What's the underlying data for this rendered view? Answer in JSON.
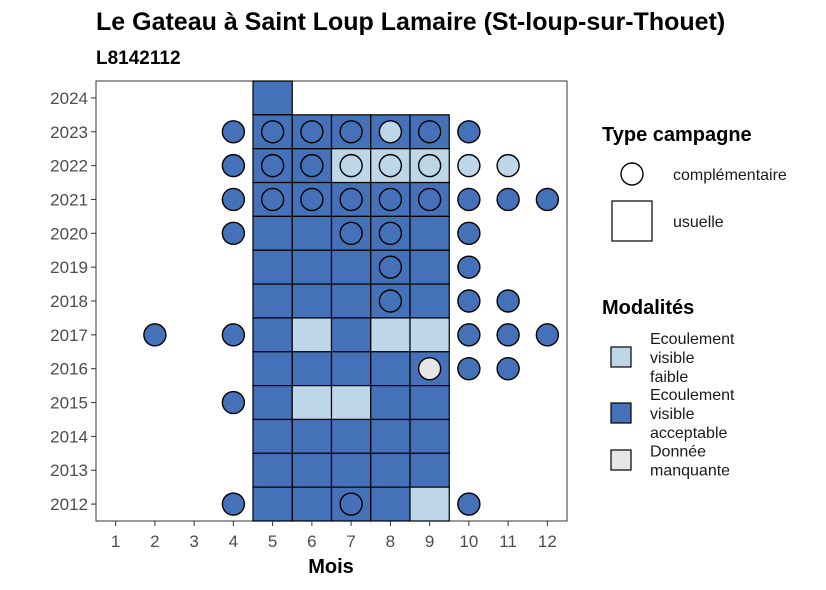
{
  "chart_data": {
    "type": "heatmap",
    "title": "Le Gateau à  Saint Loup Lamaire (St-loup-sur-Thouet)",
    "subtitle": "L8142112",
    "xlabel": "Mois",
    "ylabel": "",
    "x_ticks": [
      "1",
      "2",
      "3",
      "4",
      "5",
      "6",
      "7",
      "8",
      "9",
      "10",
      "11",
      "12"
    ],
    "y_ticks": [
      "2012",
      "2013",
      "2014",
      "2015",
      "2016",
      "2017",
      "2018",
      "2019",
      "2020",
      "2021",
      "2022",
      "2023",
      "2024"
    ],
    "xlim": [
      0.5,
      12.5
    ],
    "ylim": [
      2011.5,
      2024.5
    ],
    "grid": false,
    "legend_campagne": {
      "title": "Type campagne",
      "items": [
        {
          "key": "complementaire",
          "label": "complémentaire",
          "shape": "circle"
        },
        {
          "key": "usuelle",
          "label": "usuelle",
          "shape": "square"
        }
      ]
    },
    "legend_modalites": {
      "title": "Modalités",
      "items": [
        {
          "key": "faible",
          "label": "Ecoulement visible faible",
          "lines": [
            "Ecoulement",
            "visible",
            "faible"
          ],
          "color": "#bed7e8"
        },
        {
          "key": "acceptable",
          "label": "Ecoulement visible acceptable",
          "lines": [
            "Ecoulement",
            "visible",
            "acceptable"
          ],
          "color": "#4471b8"
        },
        {
          "key": "manquante",
          "label": "Donnée manquante",
          "lines": [
            "Donnée",
            "manquante"
          ],
          "color": "#e6e6e6"
        }
      ]
    },
    "squares": [
      {
        "year": 2024,
        "month": 5,
        "m": "acceptable"
      },
      {
        "year": 2023,
        "month": 5,
        "m": "acceptable"
      },
      {
        "year": 2023,
        "month": 6,
        "m": "acceptable"
      },
      {
        "year": 2023,
        "month": 7,
        "m": "acceptable"
      },
      {
        "year": 2023,
        "month": 8,
        "m": "acceptable"
      },
      {
        "year": 2023,
        "month": 9,
        "m": "acceptable"
      },
      {
        "year": 2022,
        "month": 5,
        "m": "acceptable"
      },
      {
        "year": 2022,
        "month": 6,
        "m": "acceptable"
      },
      {
        "year": 2022,
        "month": 7,
        "m": "faible"
      },
      {
        "year": 2022,
        "month": 8,
        "m": "faible"
      },
      {
        "year": 2022,
        "month": 9,
        "m": "faible"
      },
      {
        "year": 2021,
        "month": 5,
        "m": "acceptable"
      },
      {
        "year": 2021,
        "month": 6,
        "m": "acceptable"
      },
      {
        "year": 2021,
        "month": 7,
        "m": "acceptable"
      },
      {
        "year": 2021,
        "month": 8,
        "m": "acceptable"
      },
      {
        "year": 2021,
        "month": 9,
        "m": "acceptable"
      },
      {
        "year": 2020,
        "month": 5,
        "m": "acceptable"
      },
      {
        "year": 2020,
        "month": 6,
        "m": "acceptable"
      },
      {
        "year": 2020,
        "month": 7,
        "m": "acceptable"
      },
      {
        "year": 2020,
        "month": 8,
        "m": "acceptable"
      },
      {
        "year": 2020,
        "month": 9,
        "m": "acceptable"
      },
      {
        "year": 2019,
        "month": 5,
        "m": "acceptable"
      },
      {
        "year": 2019,
        "month": 6,
        "m": "acceptable"
      },
      {
        "year": 2019,
        "month": 7,
        "m": "acceptable"
      },
      {
        "year": 2019,
        "month": 8,
        "m": "acceptable"
      },
      {
        "year": 2019,
        "month": 9,
        "m": "acceptable"
      },
      {
        "year": 2018,
        "month": 5,
        "m": "acceptable"
      },
      {
        "year": 2018,
        "month": 6,
        "m": "acceptable"
      },
      {
        "year": 2018,
        "month": 7,
        "m": "acceptable"
      },
      {
        "year": 2018,
        "month": 8,
        "m": "acceptable"
      },
      {
        "year": 2018,
        "month": 9,
        "m": "acceptable"
      },
      {
        "year": 2017,
        "month": 5,
        "m": "acceptable"
      },
      {
        "year": 2017,
        "month": 6,
        "m": "faible"
      },
      {
        "year": 2017,
        "month": 7,
        "m": "acceptable"
      },
      {
        "year": 2017,
        "month": 8,
        "m": "faible"
      },
      {
        "year": 2017,
        "month": 9,
        "m": "faible"
      },
      {
        "year": 2016,
        "month": 5,
        "m": "acceptable"
      },
      {
        "year": 2016,
        "month": 6,
        "m": "acceptable"
      },
      {
        "year": 2016,
        "month": 7,
        "m": "acceptable"
      },
      {
        "year": 2016,
        "month": 8,
        "m": "acceptable"
      },
      {
        "year": 2016,
        "month": 9,
        "m": "acceptable"
      },
      {
        "year": 2015,
        "month": 5,
        "m": "acceptable"
      },
      {
        "year": 2015,
        "month": 6,
        "m": "faible"
      },
      {
        "year": 2015,
        "month": 7,
        "m": "faible"
      },
      {
        "year": 2015,
        "month": 8,
        "m": "acceptable"
      },
      {
        "year": 2015,
        "month": 9,
        "m": "acceptable"
      },
      {
        "year": 2014,
        "month": 5,
        "m": "acceptable"
      },
      {
        "year": 2014,
        "month": 6,
        "m": "acceptable"
      },
      {
        "year": 2014,
        "month": 7,
        "m": "acceptable"
      },
      {
        "year": 2014,
        "month": 8,
        "m": "acceptable"
      },
      {
        "year": 2014,
        "month": 9,
        "m": "acceptable"
      },
      {
        "year": 2013,
        "month": 5,
        "m": "acceptable"
      },
      {
        "year": 2013,
        "month": 6,
        "m": "acceptable"
      },
      {
        "year": 2013,
        "month": 7,
        "m": "acceptable"
      },
      {
        "year": 2013,
        "month": 8,
        "m": "acceptable"
      },
      {
        "year": 2013,
        "month": 9,
        "m": "acceptable"
      },
      {
        "year": 2012,
        "month": 5,
        "m": "acceptable"
      },
      {
        "year": 2012,
        "month": 6,
        "m": "acceptable"
      },
      {
        "year": 2012,
        "month": 7,
        "m": "acceptable"
      },
      {
        "year": 2012,
        "month": 8,
        "m": "acceptable"
      },
      {
        "year": 2012,
        "month": 9,
        "m": "faible"
      }
    ],
    "circles": [
      {
        "year": 2023,
        "month": 4,
        "m": "acceptable"
      },
      {
        "year": 2023,
        "month": 5,
        "m": "acceptable"
      },
      {
        "year": 2023,
        "month": 6,
        "m": "acceptable"
      },
      {
        "year": 2023,
        "month": 7,
        "m": "acceptable"
      },
      {
        "year": 2023,
        "month": 8,
        "m": "faible"
      },
      {
        "year": 2023,
        "month": 9,
        "m": "acceptable"
      },
      {
        "year": 2023,
        "month": 10,
        "m": "acceptable"
      },
      {
        "year": 2022,
        "month": 4,
        "m": "acceptable"
      },
      {
        "year": 2022,
        "month": 5,
        "m": "acceptable"
      },
      {
        "year": 2022,
        "month": 6,
        "m": "acceptable"
      },
      {
        "year": 2022,
        "month": 7,
        "m": "faible"
      },
      {
        "year": 2022,
        "month": 8,
        "m": "faible"
      },
      {
        "year": 2022,
        "month": 9,
        "m": "faible"
      },
      {
        "year": 2022,
        "month": 10,
        "m": "faible"
      },
      {
        "year": 2022,
        "month": 11,
        "m": "faible"
      },
      {
        "year": 2021,
        "month": 4,
        "m": "acceptable"
      },
      {
        "year": 2021,
        "month": 5,
        "m": "acceptable"
      },
      {
        "year": 2021,
        "month": 6,
        "m": "acceptable"
      },
      {
        "year": 2021,
        "month": 7,
        "m": "acceptable"
      },
      {
        "year": 2021,
        "month": 8,
        "m": "acceptable"
      },
      {
        "year": 2021,
        "month": 9,
        "m": "acceptable"
      },
      {
        "year": 2021,
        "month": 10,
        "m": "acceptable"
      },
      {
        "year": 2021,
        "month": 11,
        "m": "acceptable"
      },
      {
        "year": 2021,
        "month": 12,
        "m": "acceptable"
      },
      {
        "year": 2020,
        "month": 4,
        "m": "acceptable"
      },
      {
        "year": 2020,
        "month": 7,
        "m": "acceptable"
      },
      {
        "year": 2020,
        "month": 8,
        "m": "acceptable"
      },
      {
        "year": 2020,
        "month": 10,
        "m": "acceptable"
      },
      {
        "year": 2019,
        "month": 8,
        "m": "acceptable"
      },
      {
        "year": 2019,
        "month": 10,
        "m": "acceptable"
      },
      {
        "year": 2018,
        "month": 8,
        "m": "acceptable"
      },
      {
        "year": 2018,
        "month": 10,
        "m": "acceptable"
      },
      {
        "year": 2018,
        "month": 11,
        "m": "acceptable"
      },
      {
        "year": 2017,
        "month": 2,
        "m": "acceptable"
      },
      {
        "year": 2017,
        "month": 4,
        "m": "acceptable"
      },
      {
        "year": 2017,
        "month": 10,
        "m": "acceptable"
      },
      {
        "year": 2017,
        "month": 11,
        "m": "acceptable"
      },
      {
        "year": 2017,
        "month": 12,
        "m": "acceptable"
      },
      {
        "year": 2016,
        "month": 9,
        "m": "manquante"
      },
      {
        "year": 2016,
        "month": 10,
        "m": "acceptable"
      },
      {
        "year": 2016,
        "month": 11,
        "m": "acceptable"
      },
      {
        "year": 2015,
        "month": 4,
        "m": "acceptable"
      },
      {
        "year": 2012,
        "month": 4,
        "m": "acceptable"
      },
      {
        "year": 2012,
        "month": 7,
        "m": "acceptable"
      },
      {
        "year": 2012,
        "month": 10,
        "m": "acceptable"
      }
    ]
  }
}
